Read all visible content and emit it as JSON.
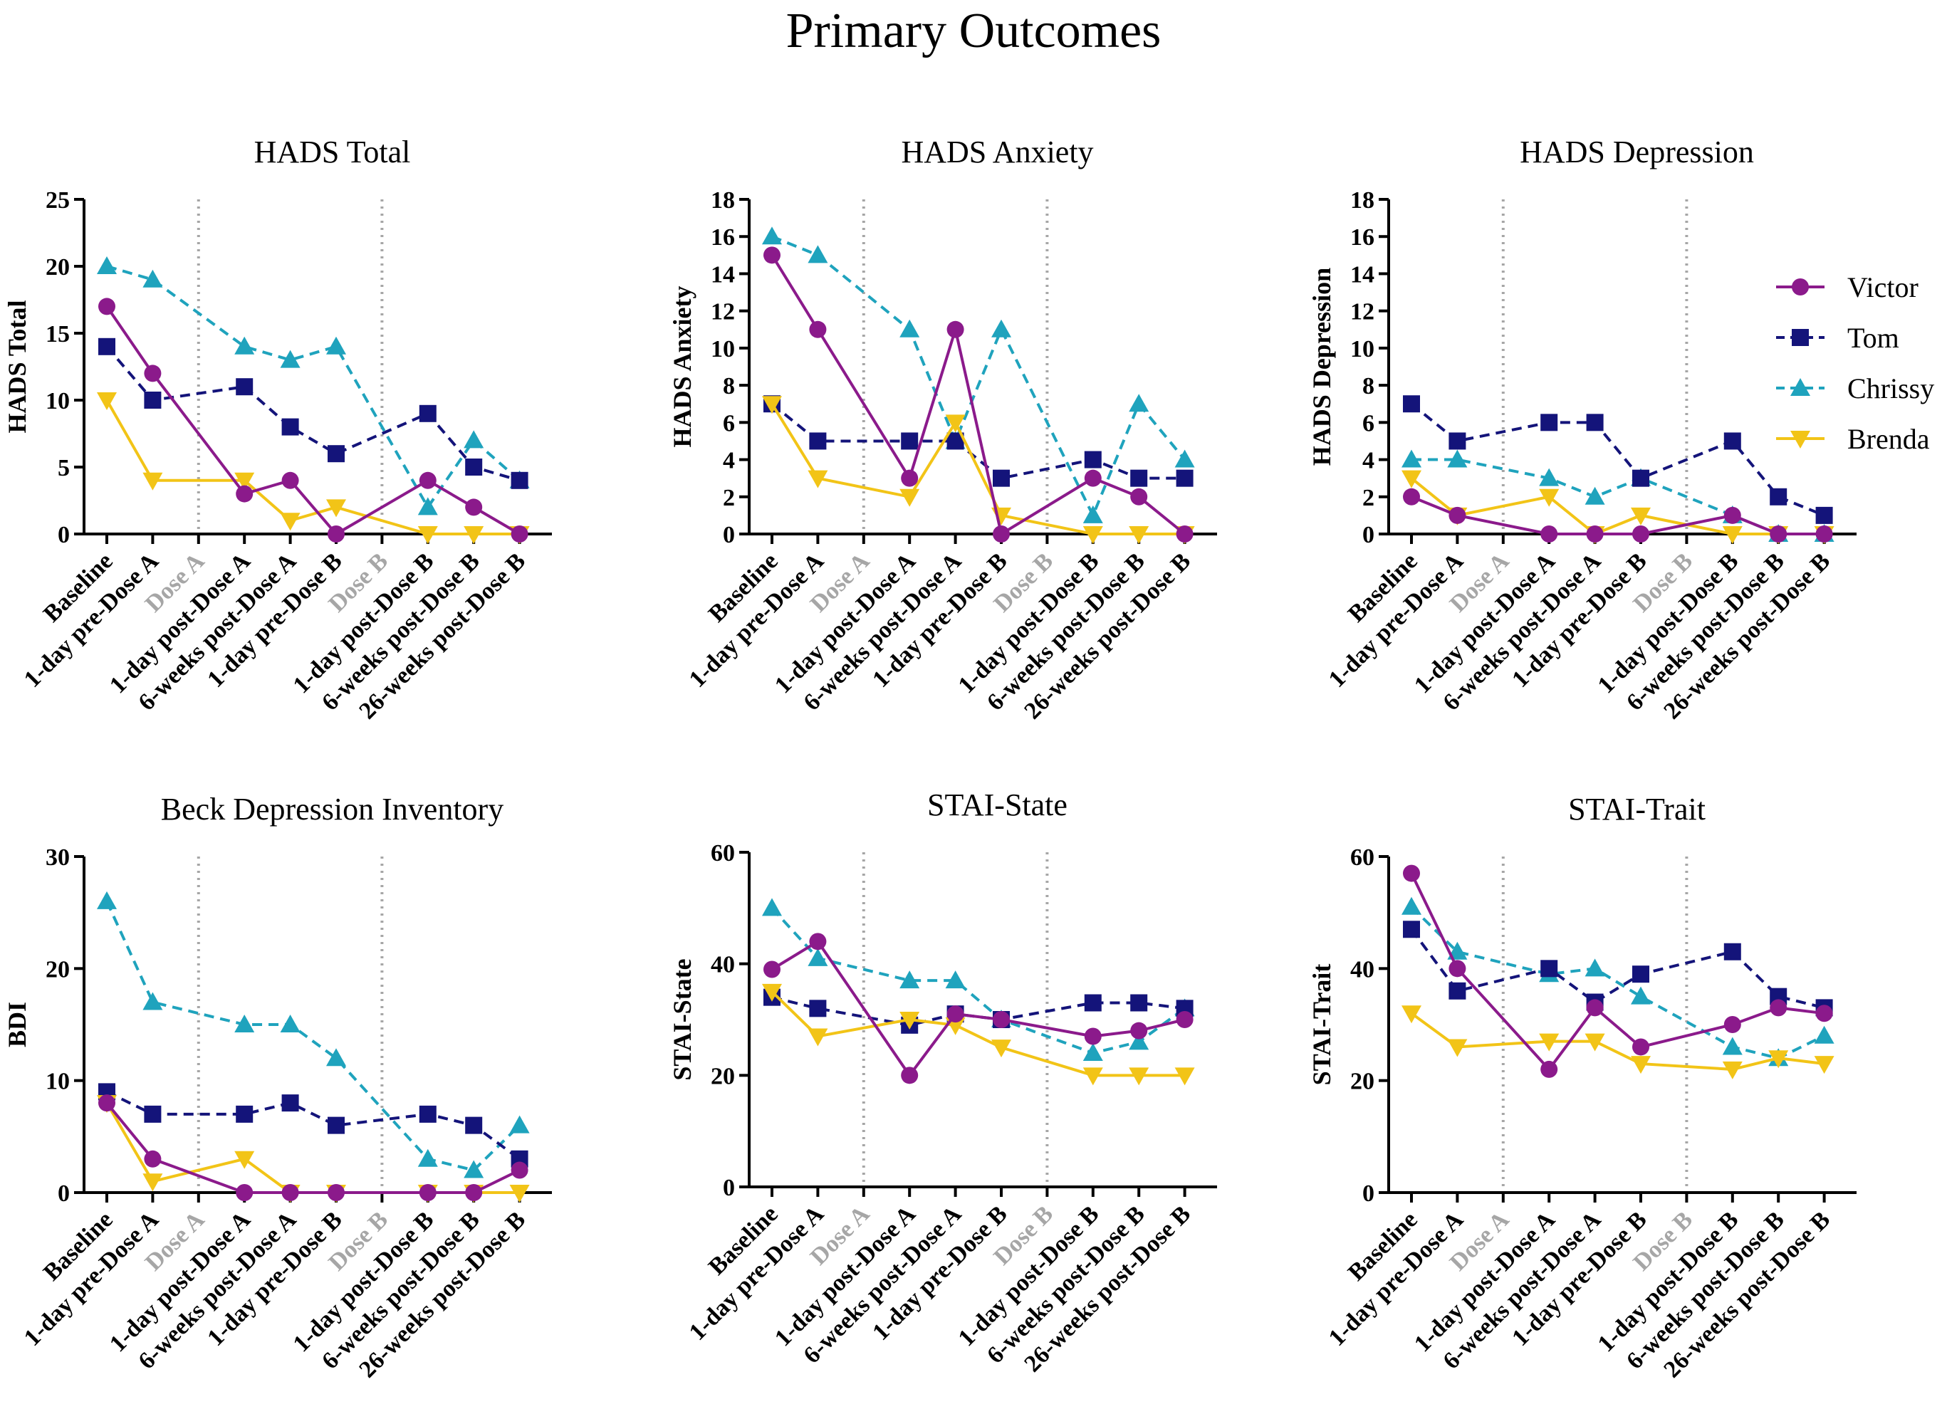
{
  "title": "Primary Outcomes",
  "colors": {
    "Victor": "#8b1a8b",
    "Tom": "#14147a",
    "Chrissy": "#1fa3bd",
    "Brenda": "#f2c417",
    "dose": "#a6a6a6"
  },
  "legend": [
    {
      "name": "Victor",
      "marker": "circle",
      "dash": "solid"
    },
    {
      "name": "Tom",
      "marker": "square",
      "dash": "dashed"
    },
    {
      "name": "Chrissy",
      "marker": "triangle-up",
      "dash": "dashed"
    },
    {
      "name": "Brenda",
      "marker": "triangle-down",
      "dash": "solid"
    }
  ],
  "chart_data": [
    {
      "type": "line",
      "title": "HADS Total",
      "ylabel": "HADS Total",
      "categories": [
        "Baseline",
        "1-day pre-Dose A",
        "Dose A",
        "1-day post-Dose A",
        "6-weeks post-Dose A",
        "1-day pre-Dose B",
        "Dose B",
        "1-day post-Dose B",
        "6-weeks post-Dose B",
        "26-weeks post-Dose B"
      ],
      "dose_markers": [
        "Dose A",
        "Dose B"
      ],
      "ylim": [
        0,
        25
      ],
      "yticks": [
        0,
        5,
        10,
        15,
        20,
        25
      ],
      "series": [
        {
          "name": "Victor",
          "values": [
            17,
            12,
            null,
            3,
            4,
            0,
            null,
            4,
            2,
            0
          ]
        },
        {
          "name": "Tom",
          "values": [
            14,
            10,
            null,
            11,
            8,
            6,
            null,
            9,
            5,
            4
          ]
        },
        {
          "name": "Chrissy",
          "values": [
            20,
            19,
            null,
            14,
            13,
            14,
            null,
            2,
            7,
            4
          ]
        },
        {
          "name": "Brenda",
          "values": [
            10,
            4,
            null,
            4,
            1,
            2,
            null,
            0,
            0,
            0
          ]
        }
      ]
    },
    {
      "type": "line",
      "title": "HADS Anxiety",
      "ylabel": "HADS Anxiety",
      "categories": [
        "Baseline",
        "1-day pre-Dose A",
        "Dose A",
        "1-day post-Dose A",
        "6-weeks post-Dose A",
        "1-day pre-Dose B",
        "Dose B",
        "1-day post-Dose B",
        "6-weeks post-Dose B",
        "26-weeks post-Dose B"
      ],
      "dose_markers": [
        "Dose A",
        "Dose B"
      ],
      "ylim": [
        0,
        18
      ],
      "yticks": [
        0,
        2,
        4,
        6,
        8,
        10,
        12,
        14,
        16,
        18
      ],
      "series": [
        {
          "name": "Victor",
          "values": [
            15,
            11,
            null,
            3,
            11,
            0,
            null,
            3,
            2,
            0
          ]
        },
        {
          "name": "Tom",
          "values": [
            7,
            5,
            null,
            5,
            5,
            3,
            null,
            4,
            3,
            3
          ]
        },
        {
          "name": "Chrissy",
          "values": [
            16,
            15,
            null,
            11,
            5,
            11,
            null,
            1,
            7,
            4
          ]
        },
        {
          "name": "Brenda",
          "values": [
            7,
            3,
            null,
            2,
            6,
            1,
            null,
            0,
            0,
            0
          ]
        }
      ]
    },
    {
      "type": "line",
      "title": "HADS Depression",
      "ylabel": "HADS Depression",
      "categories": [
        "Baseline",
        "1-day pre-Dose A",
        "Dose A",
        "1-day post-Dose A",
        "6-weeks post-Dose A",
        "1-day pre-Dose B",
        "Dose B",
        "1-day post-Dose B",
        "6-weeks post-Dose B",
        "26-weeks post-Dose B"
      ],
      "dose_markers": [
        "Dose A",
        "Dose B"
      ],
      "ylim": [
        0,
        18
      ],
      "yticks": [
        0,
        2,
        4,
        6,
        8,
        10,
        12,
        14,
        16,
        18
      ],
      "series": [
        {
          "name": "Victor",
          "values": [
            2,
            1,
            null,
            0,
            0,
            0,
            null,
            1,
            0,
            0
          ]
        },
        {
          "name": "Tom",
          "values": [
            7,
            5,
            null,
            6,
            6,
            3,
            null,
            5,
            2,
            1
          ]
        },
        {
          "name": "Chrissy",
          "values": [
            4,
            4,
            null,
            3,
            2,
            3,
            null,
            1,
            0,
            0
          ]
        },
        {
          "name": "Brenda",
          "values": [
            3,
            1,
            null,
            2,
            0,
            1,
            null,
            0,
            0,
            0
          ]
        }
      ]
    },
    {
      "type": "line",
      "title": "Beck Depression Inventory",
      "ylabel": "BDI",
      "categories": [
        "Baseline",
        "1-day pre-Dose A",
        "Dose A",
        "1-day post-Dose A",
        "6-weeks post-Dose A",
        "1-day pre-Dose B",
        "Dose B",
        "1-day post-Dose B",
        "6-weeks post-Dose B",
        "26-weeks post-Dose B"
      ],
      "dose_markers": [
        "Dose A",
        "Dose B"
      ],
      "ylim": [
        0,
        30
      ],
      "yticks": [
        0,
        10,
        20,
        30
      ],
      "series": [
        {
          "name": "Victor",
          "values": [
            8,
            3,
            null,
            0,
            0,
            0,
            null,
            0,
            0,
            2
          ]
        },
        {
          "name": "Tom",
          "values": [
            9,
            7,
            null,
            7,
            8,
            6,
            null,
            7,
            6,
            3
          ]
        },
        {
          "name": "Chrissy",
          "values": [
            26,
            17,
            null,
            15,
            15,
            12,
            null,
            3,
            2,
            6
          ]
        },
        {
          "name": "Brenda",
          "values": [
            8,
            1,
            null,
            3,
            0,
            0,
            null,
            0,
            0,
            0
          ]
        }
      ]
    },
    {
      "type": "line",
      "title": "STAI-State",
      "ylabel": "STAI-State",
      "categories": [
        "Baseline",
        "1-day pre-Dose A",
        "Dose A",
        "1-day post-Dose A",
        "6-weeks post-Dose A",
        "1-day pre-Dose B",
        "Dose B",
        "1-day post-Dose B",
        "6-weeks post-Dose B",
        "26-weeks post-Dose B"
      ],
      "dose_markers": [
        "Dose A",
        "Dose B"
      ],
      "ylim": [
        0,
        60
      ],
      "yticks": [
        0,
        20,
        40,
        60
      ],
      "series": [
        {
          "name": "Victor",
          "values": [
            39,
            44,
            null,
            20,
            31,
            30,
            null,
            27,
            28,
            30
          ]
        },
        {
          "name": "Tom",
          "values": [
            34,
            32,
            null,
            29,
            31,
            30,
            null,
            33,
            33,
            32
          ]
        },
        {
          "name": "Chrissy",
          "values": [
            50,
            41,
            null,
            37,
            37,
            30,
            null,
            24,
            26,
            32
          ]
        },
        {
          "name": "Brenda",
          "values": [
            35,
            27,
            null,
            30,
            29,
            25,
            null,
            20,
            20,
            20
          ]
        }
      ]
    },
    {
      "type": "line",
      "title": "STAI-Trait",
      "ylabel": "STAI-Trait",
      "categories": [
        "Baseline",
        "1-day pre-Dose A",
        "Dose A",
        "1-day post-Dose A",
        "6-weeks post-Dose A",
        "1-day pre-Dose B",
        "Dose B",
        "1-day post-Dose B",
        "6-weeks post-Dose B",
        "26-weeks post-Dose B"
      ],
      "dose_markers": [
        "Dose A",
        "Dose B"
      ],
      "ylim": [
        0,
        60
      ],
      "yticks": [
        0,
        20,
        40,
        60
      ],
      "series": [
        {
          "name": "Victor",
          "values": [
            57,
            40,
            null,
            22,
            33,
            26,
            null,
            30,
            33,
            32
          ]
        },
        {
          "name": "Tom",
          "values": [
            47,
            36,
            null,
            40,
            34,
            39,
            null,
            43,
            35,
            33
          ]
        },
        {
          "name": "Chrissy",
          "values": [
            51,
            43,
            null,
            39,
            40,
            35,
            null,
            26,
            24,
            28
          ]
        },
        {
          "name": "Brenda",
          "values": [
            32,
            26,
            null,
            27,
            27,
            23,
            null,
            22,
            24,
            23
          ]
        }
      ]
    }
  ]
}
